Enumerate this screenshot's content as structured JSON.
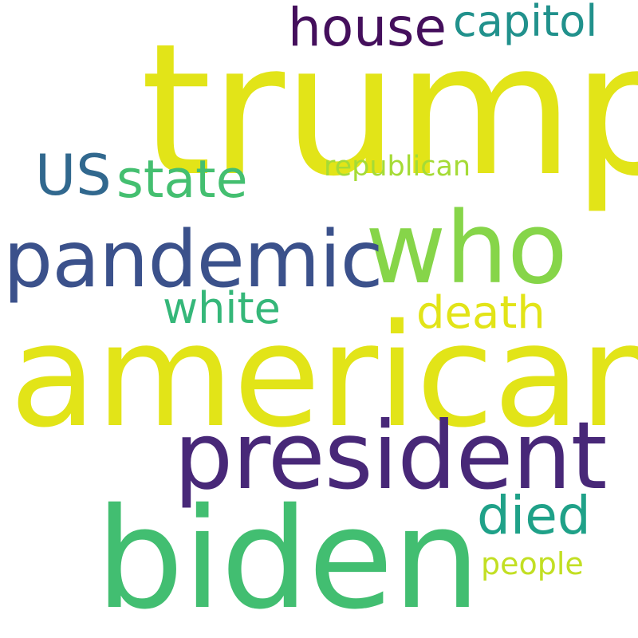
{
  "word_cloud": {
    "background": "#ffffff",
    "words": [
      {
        "id": "trump",
        "text": "trump",
        "color": "#e2e418"
      },
      {
        "id": "american",
        "text": "american",
        "color": "#e2e418"
      },
      {
        "id": "biden",
        "text": "biden",
        "color": "#42be71"
      },
      {
        "id": "president",
        "text": "president",
        "color": "#482878"
      },
      {
        "id": "who",
        "text": "who",
        "color": "#86d549"
      },
      {
        "id": "pandemic",
        "text": "pandemic",
        "color": "#3b518b"
      },
      {
        "id": "house",
        "text": "house",
        "color": "#440f5c"
      },
      {
        "id": "capitol",
        "text": "capitol",
        "color": "#21918c"
      },
      {
        "id": "us",
        "text": "US",
        "color": "#31688e"
      },
      {
        "id": "state",
        "text": "state",
        "color": "#44bf70"
      },
      {
        "id": "republican",
        "text": "republican",
        "color": "#a5db36"
      },
      {
        "id": "white",
        "text": "white",
        "color": "#35b779"
      },
      {
        "id": "death",
        "text": "death",
        "color": "#e2e418"
      },
      {
        "id": "died",
        "text": "died",
        "color": "#1fa188"
      },
      {
        "id": "people",
        "text": "people",
        "color": "#c2df23"
      }
    ]
  }
}
